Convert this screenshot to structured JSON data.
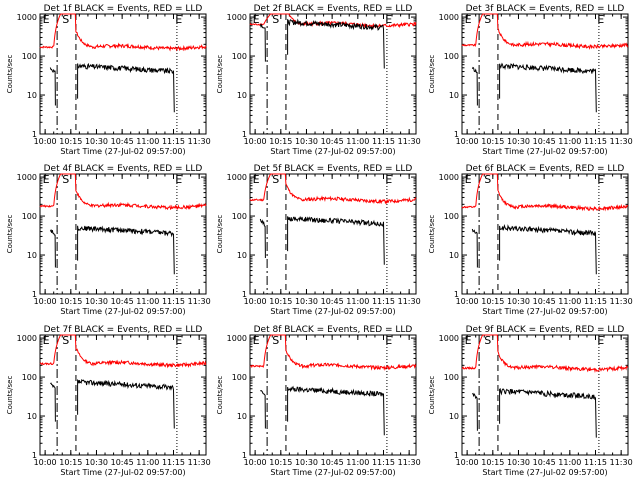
{
  "chart_data": [
    {
      "type": "line",
      "title": "Det 1f BLACK = Events, RED = LLD",
      "xlabel": "Start Time (27-Jul-02 09:57:00)",
      "ylabel": "Counts/sec",
      "xticks": [
        "10:00",
        "10:15",
        "10:30",
        "10:45",
        "11:00",
        "11:15",
        "11:30"
      ],
      "yticks": [
        "1",
        "10",
        "100",
        "1000"
      ],
      "xlim_min": [
        0,
        97
      ],
      "ylim": [
        1,
        1200
      ],
      "yscale": "log",
      "markers": [
        "E",
        "S",
        "E"
      ],
      "red_baseline": 170,
      "red_peak": 1200,
      "black_level": 45,
      "event_start_min": 10,
      "event_end_min": 80
    },
    {
      "type": "line",
      "title": "Det 2f BLACK = Events, RED = LLD",
      "xlabel": "Start Time (27-Jul-02 09:57:00)",
      "ylabel": "Counts/sec",
      "xticks": [
        "10:00",
        "10:15",
        "10:30",
        "10:45",
        "11:00",
        "11:15",
        "11:30"
      ],
      "yticks": [
        "1",
        "10",
        "100",
        "1000"
      ],
      "xlim_min": [
        0,
        97
      ],
      "ylim": [
        1,
        1200
      ],
      "yscale": "log",
      "markers": [
        "E",
        "S",
        "E"
      ],
      "red_baseline": 650,
      "red_peak": 1200,
      "black_level": 600,
      "event_start_min": 10,
      "event_end_min": 80
    },
    {
      "type": "line",
      "title": "Det 3f BLACK = Events, RED = LLD",
      "xlabel": "Start Time (27-Jul-02 09:57:00)",
      "ylabel": "Counts/sec",
      "xticks": [
        "10:00",
        "10:15",
        "10:30",
        "10:45",
        "11:00",
        "11:15",
        "11:30"
      ],
      "yticks": [
        "1",
        "10",
        "100",
        "1000"
      ],
      "xlim_min": [
        0,
        97
      ],
      "ylim": [
        1,
        1200
      ],
      "yscale": "log",
      "markers": [
        "E",
        "S",
        "E"
      ],
      "red_baseline": 190,
      "red_peak": 1200,
      "black_level": 45,
      "event_start_min": 10,
      "event_end_min": 80
    },
    {
      "type": "line",
      "title": "Det 4f BLACK = Events, RED = LLD",
      "xlabel": "Start Time (27-Jul-02 09:57:00)",
      "ylabel": "Counts/sec",
      "xticks": [
        "10:00",
        "10:15",
        "10:30",
        "10:45",
        "11:00",
        "11:15",
        "11:30"
      ],
      "yticks": [
        "1",
        "10",
        "100",
        "1000"
      ],
      "xlim_min": [
        0,
        97
      ],
      "ylim": [
        1,
        1200
      ],
      "yscale": "log",
      "markers": [
        "E",
        "S",
        "E"
      ],
      "red_baseline": 180,
      "red_peak": 1200,
      "black_level": 40,
      "event_start_min": 10,
      "event_end_min": 80
    },
    {
      "type": "line",
      "title": "Det 5f BLACK = Events, RED = LLD",
      "xlabel": "Start Time (27-Jul-02 09:57:00)",
      "ylabel": "Counts/sec",
      "xticks": [
        "10:00",
        "10:15",
        "10:30",
        "10:45",
        "11:00",
        "11:15",
        "11:30"
      ],
      "yticks": [
        "1",
        "10",
        "100",
        "1000"
      ],
      "xlim_min": [
        0,
        97
      ],
      "ylim": [
        1,
        1200
      ],
      "yscale": "log",
      "markers": [
        "E",
        "S",
        "E"
      ],
      "red_baseline": 260,
      "red_peak": 1200,
      "black_level": 70,
      "event_start_min": 10,
      "event_end_min": 80
    },
    {
      "type": "line",
      "title": "Det 6f BLACK = Events, RED = LLD",
      "xlabel": "Start Time (27-Jul-02 09:57:00)",
      "ylabel": "Counts/sec",
      "xticks": [
        "10:00",
        "10:15",
        "10:30",
        "10:45",
        "11:00",
        "11:15",
        "11:30"
      ],
      "yticks": [
        "1",
        "10",
        "100",
        "1000"
      ],
      "xlim_min": [
        0,
        97
      ],
      "ylim": [
        1,
        1200
      ],
      "yscale": "log",
      "markers": [
        "E",
        "S",
        "E"
      ],
      "red_baseline": 170,
      "red_peak": 1200,
      "black_level": 40,
      "event_start_min": 10,
      "event_end_min": 80
    },
    {
      "type": "line",
      "title": "Det 7f BLACK = Events, RED = LLD",
      "xlabel": "Start Time (27-Jul-02 09:57:00)",
      "ylabel": "Counts/sec",
      "xticks": [
        "10:00",
        "10:15",
        "10:30",
        "10:45",
        "11:00",
        "11:15",
        "11:30"
      ],
      "yticks": [
        "1",
        "10",
        "100",
        "1000"
      ],
      "xlim_min": [
        0,
        97
      ],
      "ylim": [
        1,
        1200
      ],
      "yscale": "log",
      "markers": [
        "E",
        "S",
        "E"
      ],
      "red_baseline": 220,
      "red_peak": 1200,
      "black_level": 60,
      "event_start_min": 10,
      "event_end_min": 80
    },
    {
      "type": "line",
      "title": "Det 8f BLACK = Events, RED = LLD",
      "xlabel": "Start Time (27-Jul-02 09:57:00)",
      "ylabel": "Counts/sec",
      "xticks": [
        "10:00",
        "10:15",
        "10:30",
        "10:45",
        "11:00",
        "11:15",
        "11:30"
      ],
      "yticks": [
        "1",
        "10",
        "100",
        "1000"
      ],
      "xlim_min": [
        0,
        97
      ],
      "ylim": [
        1,
        1200
      ],
      "yscale": "log",
      "markers": [
        "E",
        "S",
        "E"
      ],
      "red_baseline": 190,
      "red_peak": 1200,
      "black_level": 40,
      "event_start_min": 10,
      "event_end_min": 80
    },
    {
      "type": "line",
      "title": "Det 9f BLACK = Events, RED = LLD",
      "xlabel": "Start Time (27-Jul-02 09:57:00)",
      "ylabel": "Counts/sec",
      "xticks": [
        "10:00",
        "10:15",
        "10:30",
        "10:45",
        "11:00",
        "11:15",
        "11:30"
      ],
      "yticks": [
        "1",
        "10",
        "100",
        "1000"
      ],
      "xlim_min": [
        0,
        97
      ],
      "ylim": [
        1,
        1200
      ],
      "yscale": "log",
      "markers": [
        "E",
        "S",
        "E"
      ],
      "red_baseline": 170,
      "red_peak": 1200,
      "black_level": 35,
      "event_start_min": 10,
      "event_end_min": 80
    }
  ],
  "colors": {
    "lld": "#ff0000",
    "events": "#000000",
    "axis": "#000000"
  }
}
